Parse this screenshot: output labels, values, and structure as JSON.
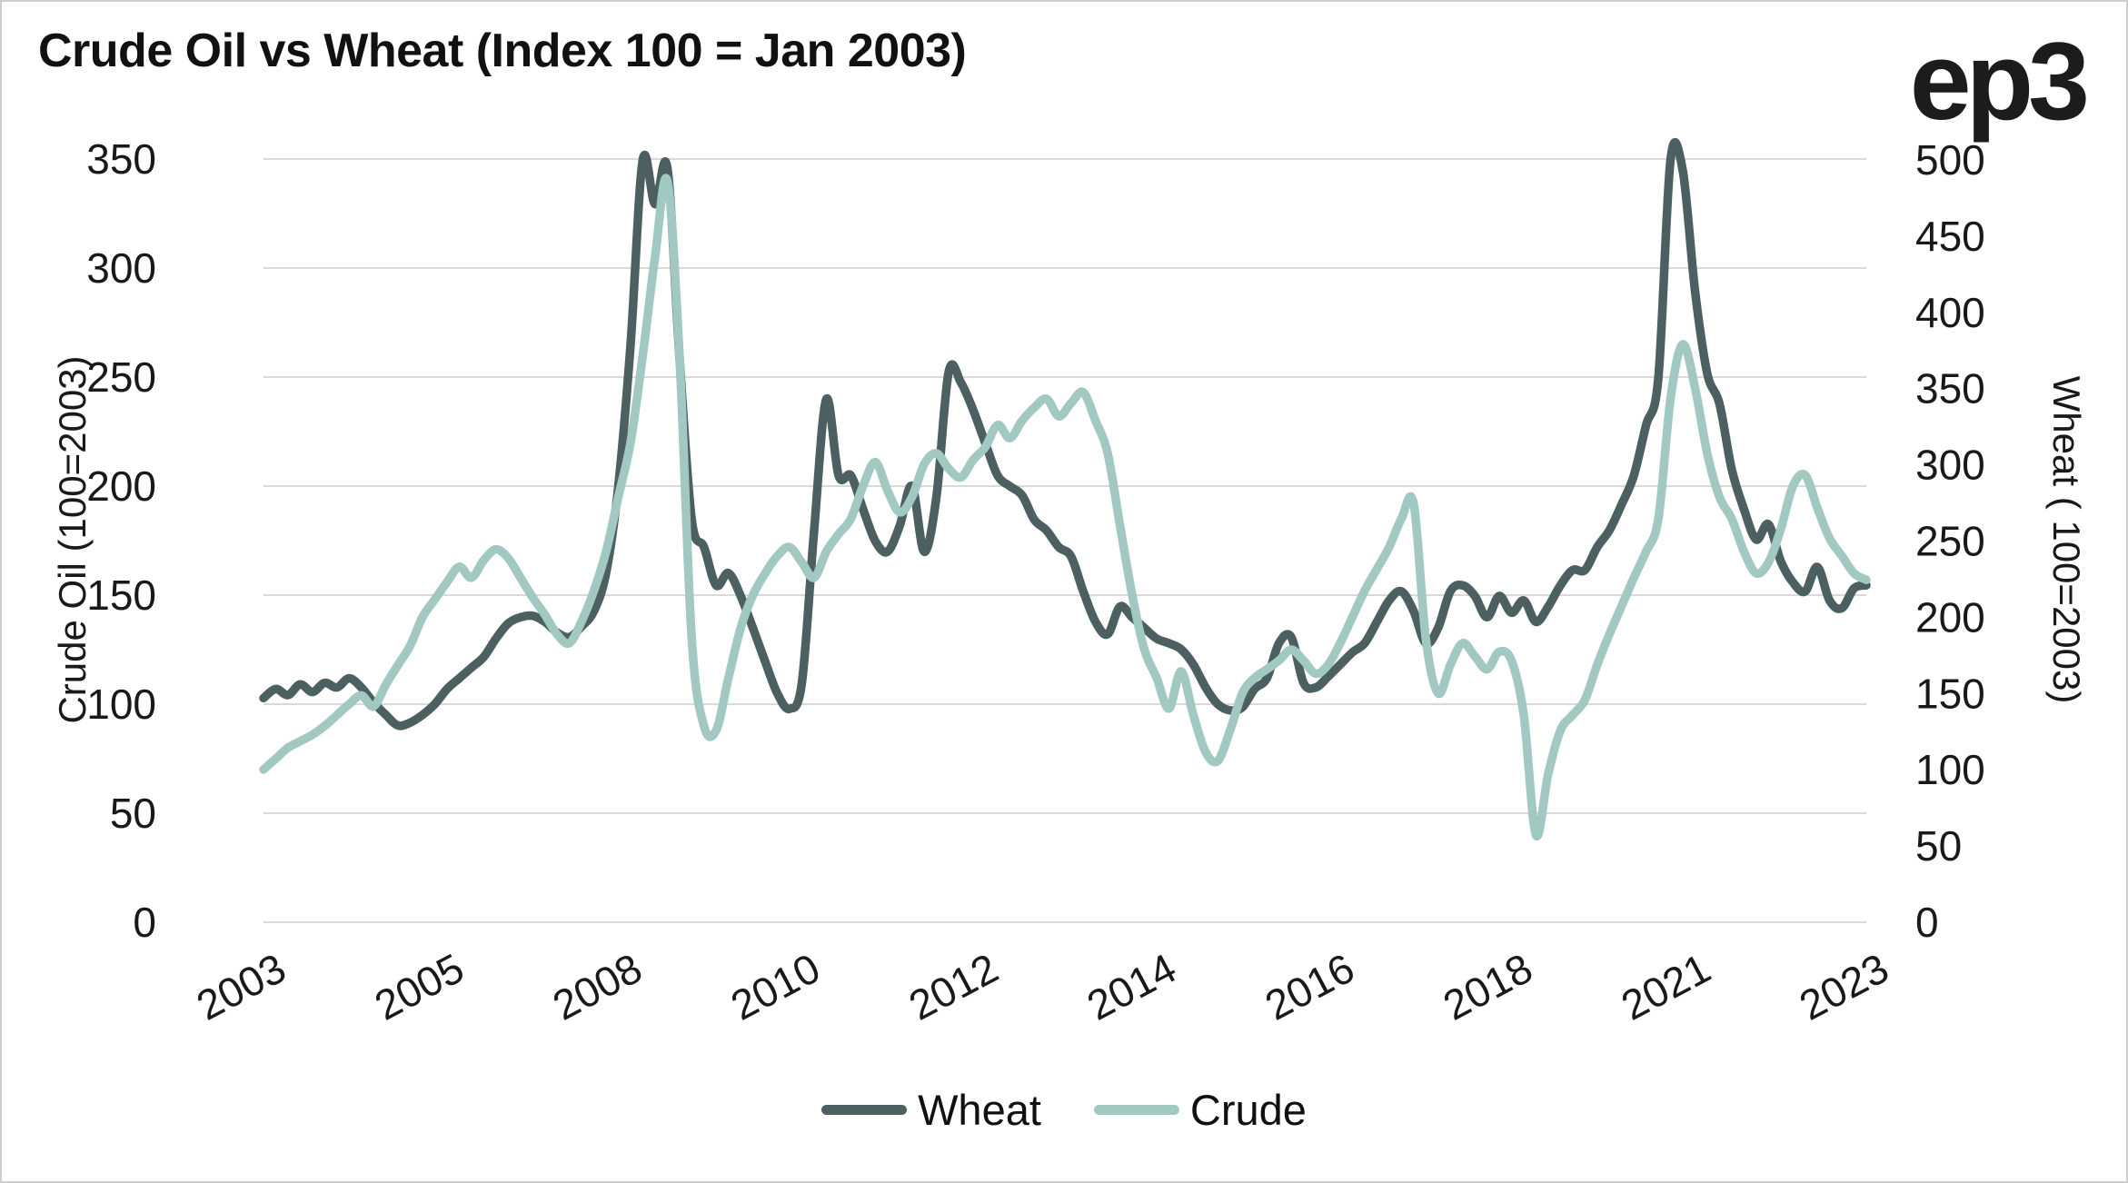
{
  "header": {
    "title": "Crude Oil vs Wheat (Index 100 = Jan 2003)",
    "logo_text": "ep3"
  },
  "chart_data": {
    "type": "line",
    "title": "Crude Oil vs Wheat (Index 100 = Jan 2003)",
    "x_tick_labels": [
      "2003",
      "2005",
      "2008",
      "2010",
      "2012",
      "2014",
      "2016",
      "2018",
      "2021",
      "2023"
    ],
    "x_start_year": 2003,
    "x_end_year": 2024,
    "sampling": "bimonthly",
    "grid": "horizontal",
    "legend_position": "bottom",
    "left_axis": {
      "title": "Crude Oil (100=2003)",
      "range": [
        0,
        350
      ],
      "ticks": [
        0,
        50,
        100,
        150,
        200,
        250,
        300,
        350
      ]
    },
    "right_axis": {
      "title": "Wheat ( 100=2003)",
      "range": [
        0,
        500
      ],
      "ticks": [
        0,
        50,
        100,
        150,
        200,
        250,
        300,
        350,
        400,
        450,
        500
      ]
    },
    "series": [
      {
        "name": "Wheat",
        "axis": "right",
        "color": "#4d6061",
        "values": [
          147,
          153,
          149,
          156,
          151,
          157,
          154,
          160,
          154,
          144,
          136,
          129,
          131,
          136,
          143,
          153,
          160,
          167,
          174,
          186,
          196,
          200,
          201,
          197,
          190,
          187,
          194,
          204,
          229,
          286,
          379,
          500,
          471,
          495,
          371,
          264,
          246,
          221,
          229,
          214,
          193,
          171,
          150,
          140,
          157,
          257,
          343,
          293,
          293,
          271,
          250,
          243,
          260,
          286,
          243,
          279,
          361,
          354,
          336,
          314,
          293,
          286,
          280,
          264,
          257,
          246,
          240,
          217,
          197,
          189,
          207,
          200,
          193,
          186,
          183,
          179,
          169,
          154,
          143,
          139,
          141,
          153,
          160,
          183,
          187,
          157,
          154,
          161,
          169,
          177,
          183,
          197,
          211,
          217,
          204,
          183,
          193,
          217,
          221,
          214,
          200,
          214,
          203,
          211,
          197,
          207,
          221,
          231,
          231,
          246,
          257,
          274,
          293,
          326,
          357,
          500,
          493,
          414,
          360,
          340,
          297,
          271,
          251,
          261,
          237,
          223,
          217,
          233,
          211,
          206,
          219,
          221
        ]
      },
      {
        "name": "Crude",
        "axis": "left",
        "color": "#a2c8c2",
        "values": [
          70,
          75,
          80,
          83,
          86,
          90,
          95,
          100,
          104,
          99,
          109,
          118,
          127,
          140,
          148,
          156,
          163,
          158,
          166,
          171,
          167,
          158,
          149,
          141,
          132,
          128,
          138,
          152,
          170,
          195,
          220,
          260,
          305,
          340,
          260,
          130,
          90,
          88,
          112,
          135,
          150,
          160,
          168,
          172,
          165,
          158,
          170,
          178,
          185,
          200,
          211,
          198,
          188,
          195,
          210,
          215,
          208,
          204,
          212,
          218,
          228,
          222,
          230,
          236,
          240,
          232,
          238,
          243,
          230,
          215,
          182,
          150,
          125,
          112,
          98,
          115,
          95,
          78,
          74,
          88,
          105,
          112,
          116,
          120,
          125,
          120,
          114,
          118,
          128,
          140,
          152,
          162,
          172,
          185,
          192,
          130,
          105,
          118,
          128,
          122,
          116,
          124,
          120,
          95,
          40,
          68,
          88,
          95,
          102,
          118,
          132,
          145,
          158,
          170,
          185,
          240,
          265,
          245,
          215,
          195,
          185,
          170,
          160,
          165,
          180,
          200,
          205,
          190,
          176,
          168,
          160,
          157
        ]
      }
    ],
    "style": {
      "gridline_color": "#d9d9d9",
      "tick_label_color": "#191919",
      "line_width": 9.5
    }
  }
}
